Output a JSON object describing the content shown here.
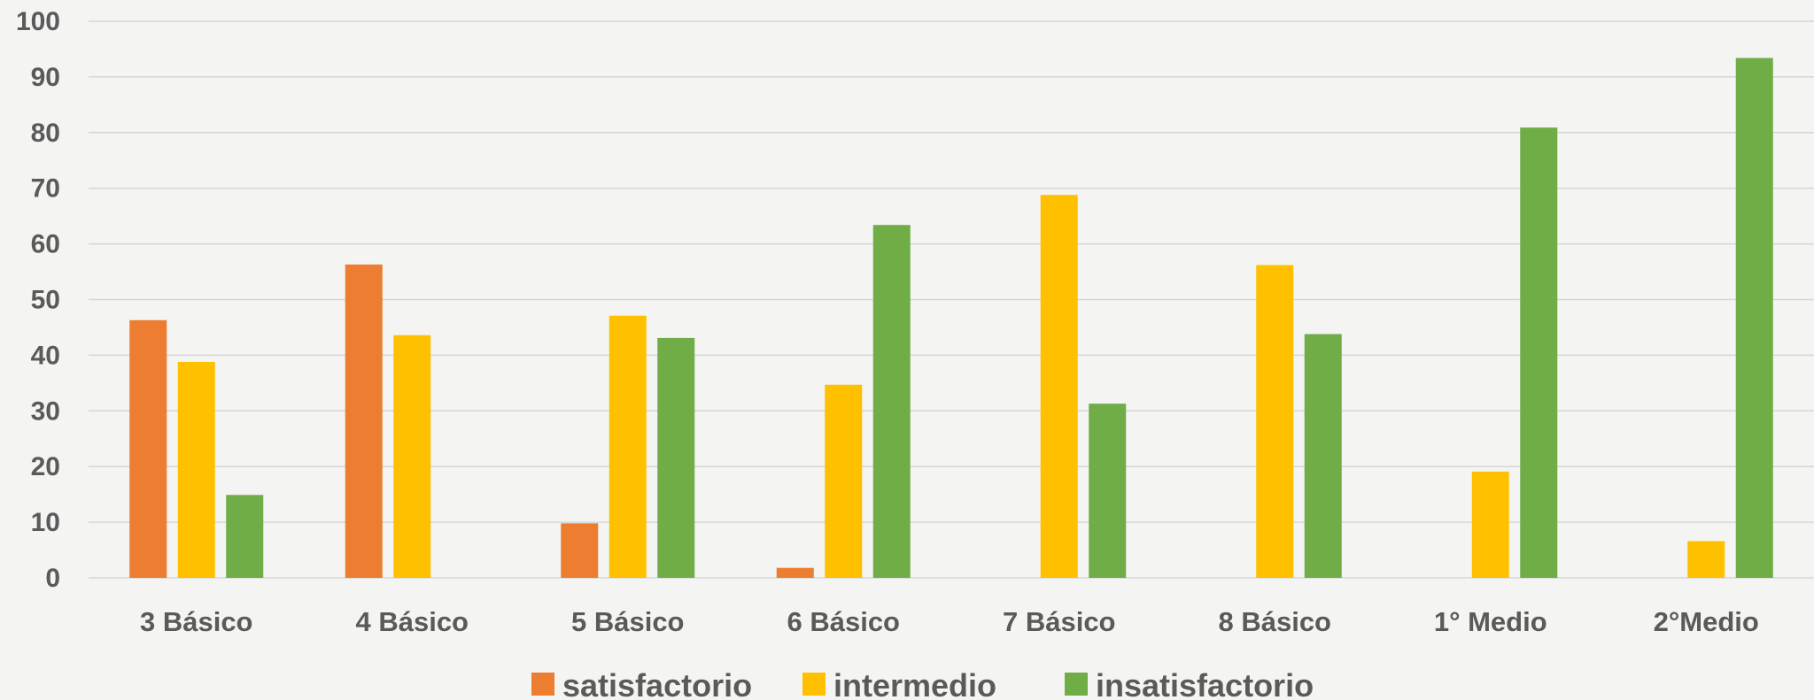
{
  "chart_data": {
    "type": "bar",
    "categories": [
      "3 Básico",
      "4 Básico",
      "5 Básico",
      "6 Básico",
      "7 Básico",
      "8 Básico",
      "1° Medio",
      "2°Medio"
    ],
    "series": [
      {
        "name": "satisfactorio",
        "color": "#ED7D31",
        "values": [
          46.3,
          56.3,
          9.8,
          1.8,
          0,
          0,
          0,
          0
        ]
      },
      {
        "name": "intermedio",
        "color": "#FFC000",
        "values": [
          38.8,
          43.6,
          47.1,
          34.7,
          68.8,
          56.2,
          19.1,
          6.6
        ]
      },
      {
        "name": "insatisfactorio",
        "color": "#70AD47",
        "values": [
          14.9,
          0,
          43.1,
          63.4,
          31.3,
          43.8,
          80.9,
          93.4
        ]
      }
    ],
    "yticks": [
      "0",
      "10",
      "20",
      "30",
      "40",
      "50",
      "60",
      "70",
      "80",
      "90",
      "100"
    ],
    "ylim": [
      0,
      100
    ],
    "grid": true,
    "legend_position": "bottom"
  }
}
